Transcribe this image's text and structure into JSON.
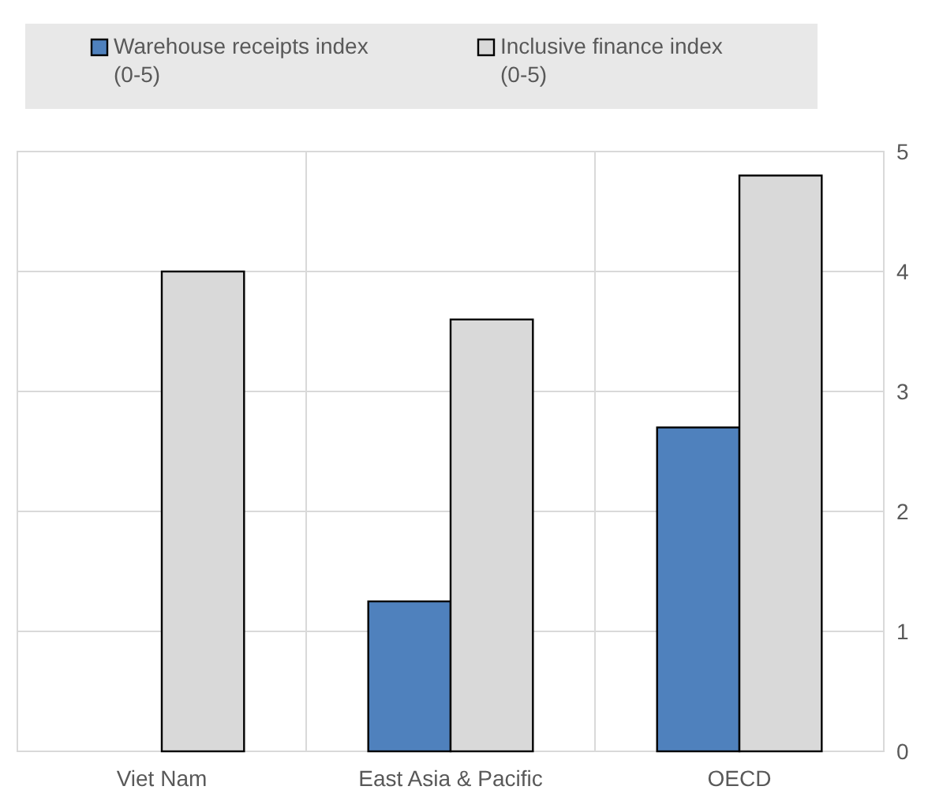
{
  "chart_data": {
    "type": "bar",
    "categories": [
      "Viet Nam",
      "East Asia & Pacific",
      "OECD"
    ],
    "series": [
      {
        "name": "Warehouse receipts index (0-5)",
        "color": "#4f81bd",
        "values": [
          0,
          1.25,
          2.7
        ]
      },
      {
        "name": "Inclusive finance index (0-5)",
        "color": "#d9d9d9",
        "values": [
          4.0,
          3.6,
          4.8
        ]
      }
    ],
    "ylim": [
      0,
      5
    ],
    "yticks": [
      0,
      1,
      2,
      3,
      4,
      5
    ],
    "grid": true,
    "legend": "top"
  }
}
